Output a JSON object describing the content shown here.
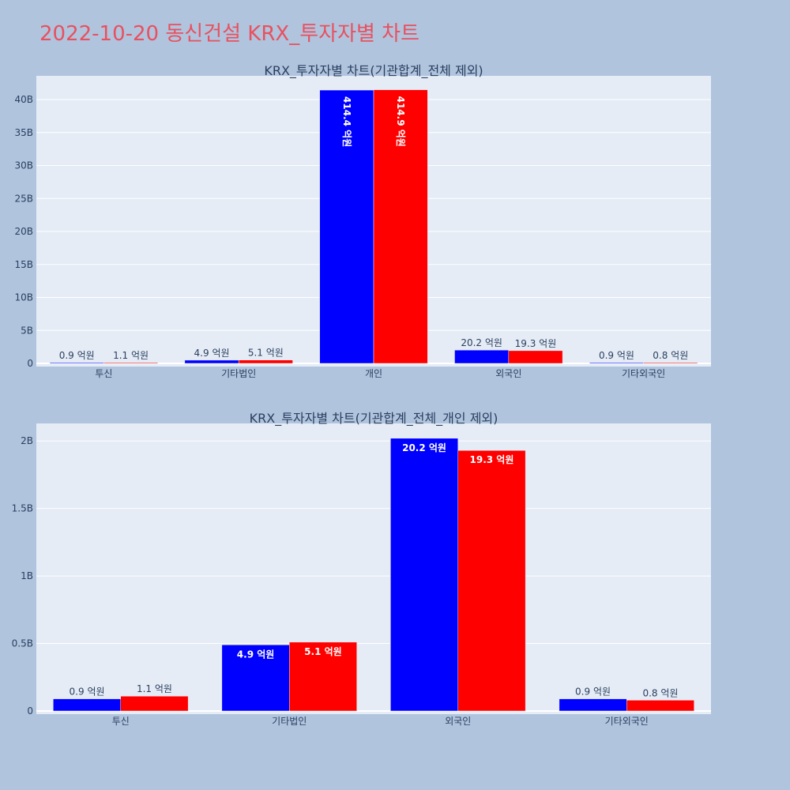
{
  "title": "2022-10-20 동신건설 KRX_투자자별 차트",
  "colors": {
    "buy": "#0000ff",
    "sell": "#ff0000",
    "background": "#b0c4de",
    "title": "#e8515f"
  },
  "chart_data": [
    {
      "type": "bar",
      "title": "KRX_투자자별 차트(기관합계_전체 제외)",
      "categories": [
        "투신",
        "기타법인",
        "개인",
        "외국인",
        "기타외국인"
      ],
      "series": [
        {
          "values": [
            90000000,
            490000000,
            41440000000,
            2020000000,
            90000000
          ],
          "labels": [
            "0.9 억원",
            "4.9 억원",
            "414.4 억원",
            "20.2 억원",
            "0.9 억원"
          ]
        },
        {
          "values": [
            110000000,
            510000000,
            41490000000,
            1930000000,
            80000000
          ],
          "labels": [
            "1.1 억원",
            "5.1 억원",
            "414.9 억원",
            "19.3 억원",
            "0.8 억원"
          ]
        }
      ],
      "yticks": [
        0,
        5000000000,
        10000000000,
        15000000000,
        20000000000,
        25000000000,
        30000000000,
        35000000000,
        40000000000
      ],
      "ytick_labels": [
        "0",
        "5B",
        "10B",
        "15B",
        "20B",
        "25B",
        "30B",
        "35B",
        "40B"
      ],
      "ylim": [
        0,
        43600000000
      ],
      "xlabel": "",
      "ylabel": "",
      "grid": true
    },
    {
      "type": "bar",
      "title": "KRX_투자자별 차트(기관합계_전체_개인 제외)",
      "categories": [
        "투신",
        "기타법인",
        "외국인",
        "기타외국인"
      ],
      "series": [
        {
          "values": [
            90000000,
            490000000,
            2020000000,
            90000000
          ],
          "labels": [
            "0.9 억원",
            "4.9 억원",
            "20.2 억원",
            "0.9 억원"
          ]
        },
        {
          "values": [
            110000000,
            510000000,
            1930000000,
            80000000
          ],
          "labels": [
            "1.1 억원",
            "5.1 억원",
            "19.3 억원",
            "0.8 억원"
          ]
        }
      ],
      "yticks": [
        0,
        500000000,
        1000000000,
        1500000000,
        2000000000
      ],
      "ytick_labels": [
        "0",
        "0.5B",
        "1B",
        "1.5B",
        "2B"
      ],
      "ylim": [
        0,
        2130000000
      ],
      "xlabel": "",
      "ylabel": "",
      "grid": true
    }
  ]
}
